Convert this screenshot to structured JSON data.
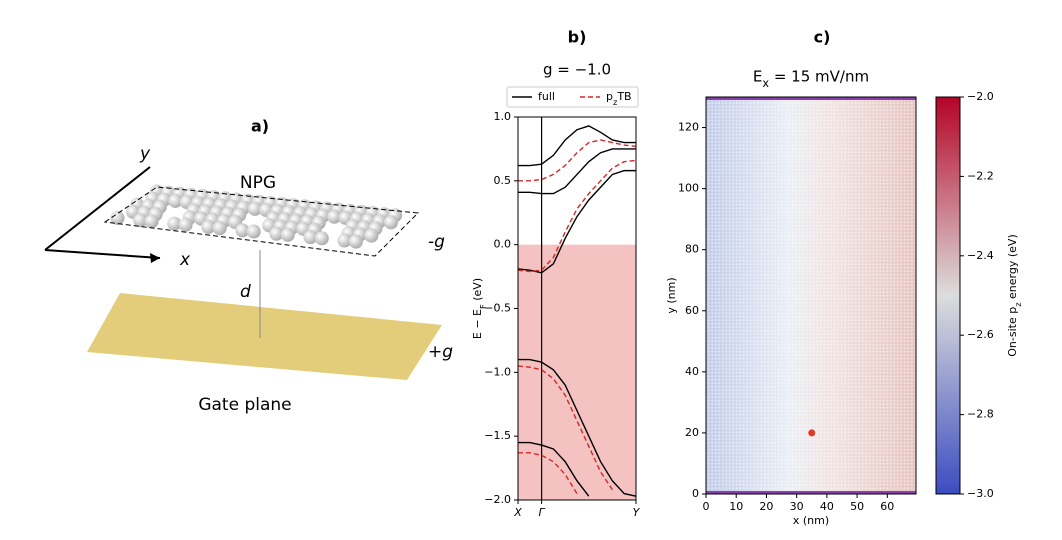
{
  "diagram": {
    "panel_label": "a)",
    "axis_y": "y",
    "axis_x": "x",
    "sheet": "NPG",
    "top_charge": "-g",
    "separation": "d",
    "bottom_charge": "+g",
    "gate": "Gate plane"
  },
  "chart_data": [
    {
      "type": "line",
      "panel_label": "b)",
      "title": "g = −1.0",
      "ylabel": "E − E_F (eV)",
      "xlim": [
        0,
        1
      ],
      "xticks": [
        {
          "value": 0,
          "label": "X"
        },
        {
          "value": 0.2,
          "label": "Γ"
        },
        {
          "value": 1,
          "label": "Y"
        }
      ],
      "ylim": [
        -2,
        1
      ],
      "yticks": [
        {
          "value": 1,
          "label": "1.0"
        },
        {
          "value": 0.5,
          "label": "0.5"
        },
        {
          "value": 0,
          "label": "0.0"
        },
        {
          "value": -0.5,
          "label": "−0.5"
        },
        {
          "value": -1,
          "label": "−1.0"
        },
        {
          "value": -1.5,
          "label": "−1.5"
        },
        {
          "value": -2,
          "label": "−2.0"
        }
      ],
      "fermi_shading": "#f4c2c0",
      "x": [
        0,
        0.1,
        0.2,
        0.3,
        0.4,
        0.5,
        0.6,
        0.7,
        0.8,
        0.9,
        1.0
      ],
      "series": [
        {
          "name": "full",
          "color": "#000000",
          "dashed": false,
          "values": [
            [
              -0.19,
              -0.2,
              -0.22,
              -0.15,
              0.05,
              0.22,
              0.35,
              0.45,
              0.55,
              0.58,
              0.58
            ],
            [
              0.41,
              0.41,
              0.4,
              0.4,
              0.45,
              0.55,
              0.65,
              0.72,
              0.75,
              0.75,
              0.75
            ],
            [
              0.62,
              0.62,
              0.63,
              0.7,
              0.82,
              0.9,
              0.93,
              0.88,
              0.82,
              0.8,
              0.8
            ],
            [
              -0.9,
              -0.9,
              -0.92,
              -0.98,
              -1.1,
              -1.3,
              -1.5,
              -1.7,
              -1.85,
              -1.95,
              -1.97
            ],
            [
              -1.55,
              -1.55,
              -1.57,
              -1.6,
              -1.7,
              -1.85,
              -1.97,
              null,
              null,
              null,
              null
            ]
          ]
        },
        {
          "name": "p_zTB",
          "color": "#d62728",
          "dashed": true,
          "values": [
            [
              -0.2,
              -0.21,
              -0.2,
              -0.1,
              0.1,
              0.28,
              0.4,
              0.5,
              0.6,
              0.65,
              0.66
            ],
            [
              0.5,
              0.5,
              0.51,
              0.55,
              0.62,
              0.72,
              0.8,
              0.82,
              0.8,
              0.78,
              0.77
            ],
            [
              -0.95,
              -0.96,
              -0.98,
              -1.05,
              -1.18,
              -1.38,
              -1.58,
              -1.78,
              -1.92,
              null,
              null
            ],
            [
              -1.63,
              -1.63,
              -1.65,
              -1.7,
              -1.8,
              -1.95,
              null,
              null,
              null,
              null,
              null
            ]
          ]
        }
      ]
    },
    {
      "type": "scatter",
      "panel_label": "c)",
      "title": "E_x = 15 mV/nm",
      "xlabel": "x (nm)",
      "ylabel": "y (nm)",
      "xlim": [
        0,
        69.5
      ],
      "xticks": [
        0,
        10,
        20,
        30,
        40,
        50,
        60
      ],
      "ylim": [
        0,
        130
      ],
      "yticks": [
        0,
        20,
        40,
        60,
        80,
        100,
        120
      ],
      "series": [
        {
          "color": "#e0392b",
          "x": [
            35
          ],
          "y": [
            20
          ]
        }
      ],
      "colorbar": {
        "label": "On-site p_z energy (eV)",
        "lim": [
          -3,
          -2
        ],
        "colormap": [
          "#3b4cc0",
          "#dddddd",
          "#b40426"
        ],
        "ticks": [
          {
            "value": -3,
            "label": "−3.0"
          },
          {
            "value": -2.8,
            "label": "−2.8"
          },
          {
            "value": -2.6,
            "label": "−2.6"
          },
          {
            "value": -2.4,
            "label": "−2.4"
          },
          {
            "value": -2.2,
            "label": "−2.2"
          },
          {
            "value": -2,
            "label": "−2.0"
          }
        ]
      }
    }
  ]
}
